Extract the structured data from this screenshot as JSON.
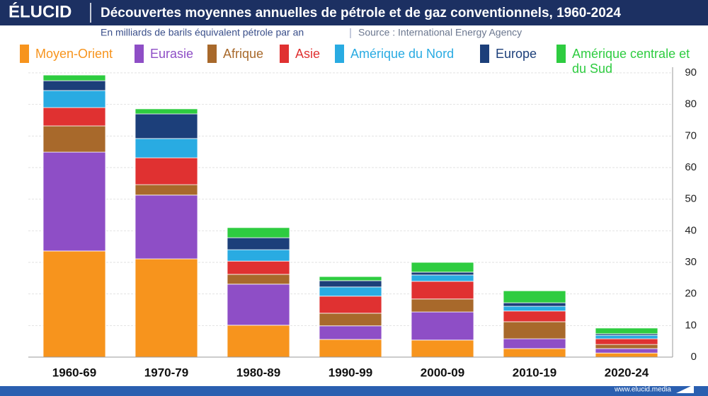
{
  "chart_data": {
    "type": "stacked_bar",
    "brand": "ÉLUCID",
    "title": "Découvertes moyennes annuelles de pétrole et de gaz conventionnels, 1960-2024",
    "subtitle": "En milliards de barils équivalent pétrole par an",
    "source": "Source : International Energy Agency",
    "website": "www.elucid.media",
    "categories": [
      "1960-69",
      "1970-79",
      "1980-89",
      "1990-99",
      "2000-09",
      "2010-19",
      "2020-24"
    ],
    "series": [
      {
        "name": "Moyen-Orient",
        "color": "#f7941d",
        "values": [
          33.6,
          31.1,
          10.1,
          5.6,
          5.4,
          2.7,
          1.3
        ]
      },
      {
        "name": "Eurasie",
        "color": "#8e4ec6",
        "values": [
          31.3,
          20.2,
          13.0,
          4.3,
          8.9,
          3.1,
          1.4
        ]
      },
      {
        "name": "Afrique",
        "color": "#a8692b",
        "values": [
          8.3,
          3.3,
          3.1,
          4.0,
          4.1,
          5.4,
          1.3
        ]
      },
      {
        "name": "Asie",
        "color": "#e03131",
        "values": [
          5.8,
          8.5,
          4.2,
          5.4,
          5.6,
          3.4,
          1.8
        ]
      },
      {
        "name": "Amérique du Nord",
        "color": "#29abe2",
        "values": [
          5.4,
          6.1,
          3.6,
          2.9,
          2.0,
          1.5,
          1.1
        ]
      },
      {
        "name": "Europe",
        "color": "#1c3f7a",
        "values": [
          3.1,
          7.8,
          3.8,
          2.0,
          0.9,
          1.1,
          0.5
        ]
      },
      {
        "name": "Amérique centrale et du Sud",
        "color": "#2ecc40",
        "values": [
          1.8,
          1.6,
          3.2,
          1.3,
          3.1,
          3.8,
          1.8
        ]
      }
    ],
    "ylim": [
      0,
      90
    ],
    "yticks": [
      0,
      10,
      20,
      30,
      40,
      50,
      60,
      70,
      80,
      90
    ],
    "y_axis_side": "right",
    "grid": true,
    "legend": "top"
  }
}
